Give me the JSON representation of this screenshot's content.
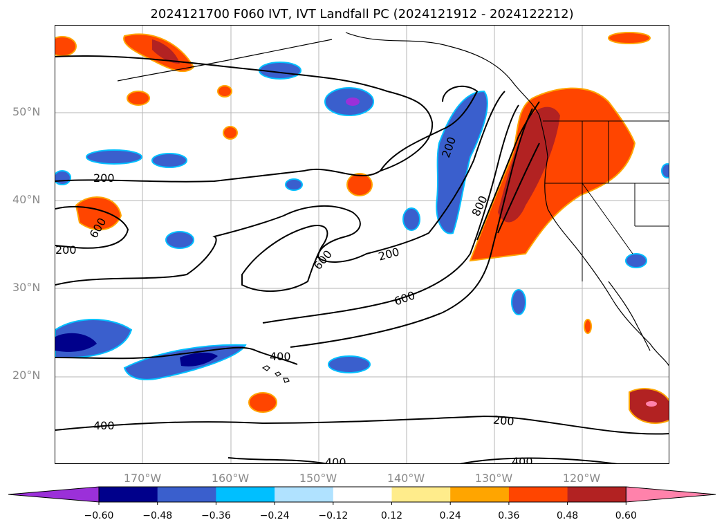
{
  "title": "2024121700 F060 IVT, IVT Landfall PC (2024121912 - 2024122212)",
  "lat_labels": [
    {
      "label": "50°N",
      "lat": 50
    },
    {
      "label": "40°N",
      "lat": 40
    },
    {
      "label": "30°N",
      "lat": 30
    },
    {
      "label": "20°N",
      "lat": 20
    }
  ],
  "lon_labels": [
    {
      "label": "170°W",
      "lon": -170
    },
    {
      "label": "160°W",
      "lon": -160
    },
    {
      "label": "150°W",
      "lon": -150
    },
    {
      "label": "140°W",
      "lon": -140
    },
    {
      "label": "130°W",
      "lon": -130
    },
    {
      "label": "120°W",
      "lon": -120
    }
  ],
  "contour_labels": [
    "200",
    "600",
    "200",
    "600",
    "200",
    "600",
    "200",
    "800",
    "400",
    "200",
    "400",
    "400",
    "400"
  ],
  "colorbar": {
    "colors": [
      "#9b30d9",
      "#00008b",
      "#3a5fcd",
      "#00bfff",
      "#b0e2ff",
      "#ffffff",
      "#ffec8b",
      "#ffa500",
      "#ff4500",
      "#b22222",
      "#ff82ab"
    ],
    "ticks": [
      "−0.60",
      "−0.48",
      "−0.36",
      "−0.24",
      "−0.12",
      "0.12",
      "0.24",
      "0.36",
      "0.48",
      "0.60"
    ]
  }
}
